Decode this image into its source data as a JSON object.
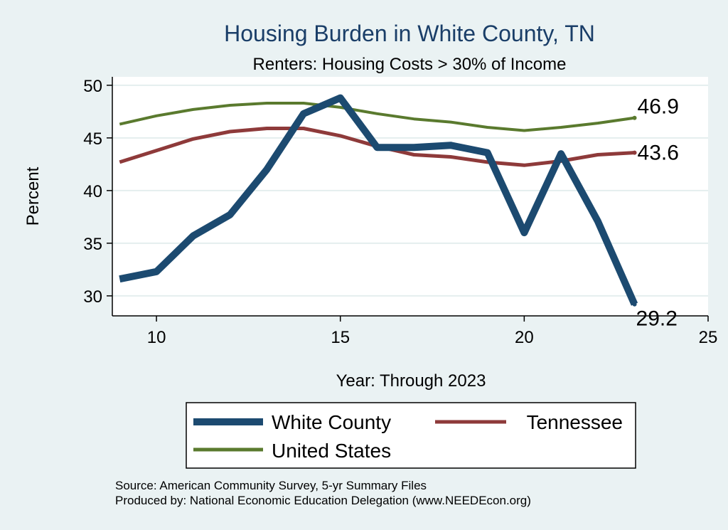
{
  "chart_data": {
    "type": "line",
    "title": "Housing Burden in White County, TN",
    "subtitle": "Renters: Housing Costs > 30% of Income",
    "xlabel": "Year: Through 2023",
    "ylabel": "Percent",
    "xlim": [
      8.8,
      25
    ],
    "ylim": [
      28.1,
      50.8
    ],
    "xticks": [
      10,
      15,
      20,
      25
    ],
    "yticks": [
      30,
      35,
      40,
      45,
      50
    ],
    "x": [
      9,
      10,
      11,
      12,
      13,
      14,
      15,
      16,
      17,
      18,
      19,
      20,
      21,
      22,
      23
    ],
    "series": [
      {
        "name": "White County",
        "color": "#1c4a70",
        "values": [
          31.6,
          32.3,
          35.7,
          37.7,
          42.0,
          47.3,
          48.8,
          44.1,
          44.1,
          44.3,
          43.6,
          36.0,
          43.5,
          37.1,
          29.2
        ],
        "end_label": "29.2"
      },
      {
        "name": "Tennessee",
        "color": "#8e3a3a",
        "values": [
          42.7,
          43.8,
          44.9,
          45.6,
          45.9,
          45.9,
          45.2,
          44.2,
          43.4,
          43.2,
          42.7,
          42.4,
          42.8,
          43.4,
          43.6
        ],
        "end_label": "43.6"
      },
      {
        "name": "United States",
        "color": "#5a7a2e",
        "values": [
          46.3,
          47.1,
          47.7,
          48.1,
          48.3,
          48.3,
          47.9,
          47.3,
          46.8,
          46.5,
          46.0,
          45.7,
          46.0,
          46.4,
          46.9
        ],
        "end_label": "46.9"
      }
    ],
    "legend": {
      "position": "bottom",
      "items": [
        "White County",
        "Tennessee",
        "United States"
      ]
    },
    "grid": true
  },
  "source": {
    "line1": "Source: American Community Survey, 5-yr Summary Files",
    "line2": "Produced by: National Economic Education Delegation (www.NEEDEcon.org)"
  },
  "colors": {
    "background": "#eaf2f3",
    "plot_background": "#ffffff",
    "grid": "#e4eeee",
    "title": "#1a3e68"
  }
}
